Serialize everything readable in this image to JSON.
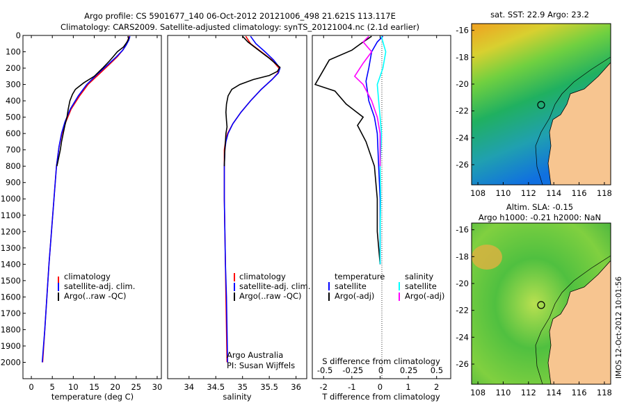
{
  "header": {
    "line1": "Argo profile: CS 5901677_140 06-Oct-2012 20121006_498 21.621S 113.117E",
    "line2": "Climatology: CARS2009. Satellite-adjusted climatology: synTS_20121004.nc (2.1d earlier)"
  },
  "colors": {
    "climatology": "#ff0000",
    "satellite": "#0000ff",
    "argo": "#000000",
    "sal_satellite": "#00ffff",
    "sal_argo": "#ff00ff",
    "land": "#f7c590"
  },
  "chart_data": [
    {
      "type": "line",
      "xlabel": "temperature (deg C)",
      "ylabel": "",
      "xlim": [
        -2,
        31
      ],
      "ylim": [
        2100,
        0
      ],
      "xticks": [
        0,
        5,
        10,
        15,
        20,
        25,
        30
      ],
      "yticks": [
        0,
        100,
        200,
        300,
        400,
        500,
        600,
        700,
        800,
        900,
        1000,
        1100,
        1200,
        1300,
        1400,
        1500,
        1600,
        1700,
        1800,
        1900,
        2000
      ],
      "legend": [
        "climatology",
        "satellite-adj. clim.",
        "Argo(..raw -QC)"
      ],
      "legend_position": "lower-center",
      "series": [
        {
          "name": "climatology",
          "color": "#ff0000",
          "points": [
            [
              23.3,
              5
            ],
            [
              23.0,
              30
            ],
            [
              22.5,
              60
            ],
            [
              21.8,
              90
            ],
            [
              20.5,
              130
            ],
            [
              18.5,
              180
            ],
            [
              16.0,
              240
            ],
            [
              13.5,
              300
            ],
            [
              11.5,
              370
            ],
            [
              9.5,
              450
            ],
            [
              8.2,
              530
            ],
            [
              7.3,
              600
            ],
            [
              6.6,
              680
            ],
            [
              6.0,
              800
            ],
            [
              5.4,
              1000
            ],
            [
              4.8,
              1200
            ],
            [
              4.2,
              1400
            ],
            [
              3.7,
              1600
            ],
            [
              3.2,
              1800
            ],
            [
              2.7,
              2000
            ]
          ]
        },
        {
          "name": "satellite-adj. clim.",
          "color": "#0000ff",
          "points": [
            [
              23.5,
              5
            ],
            [
              23.2,
              30
            ],
            [
              22.6,
              60
            ],
            [
              21.8,
              90
            ],
            [
              20.3,
              130
            ],
            [
              18.2,
              180
            ],
            [
              15.6,
              240
            ],
            [
              13.2,
              300
            ],
            [
              11.2,
              370
            ],
            [
              9.3,
              450
            ],
            [
              8.0,
              530
            ],
            [
              7.2,
              600
            ],
            [
              6.6,
              680
            ],
            [
              6.0,
              800
            ],
            [
              5.4,
              1000
            ],
            [
              4.8,
              1200
            ],
            [
              4.2,
              1400
            ],
            [
              3.7,
              1600
            ],
            [
              3.2,
              1800
            ],
            [
              2.6,
              2000
            ]
          ]
        },
        {
          "name": "Argo(..raw -QC)",
          "color": "#000000",
          "points": [
            [
              23.0,
              5
            ],
            [
              23.2,
              20
            ],
            [
              22.8,
              40
            ],
            [
              22.0,
              70
            ],
            [
              20.5,
              100
            ],
            [
              19.5,
              130
            ],
            [
              18.5,
              160
            ],
            [
              17.0,
              200
            ],
            [
              15.0,
              250
            ],
            [
              12.5,
              290
            ],
            [
              10.5,
              330
            ],
            [
              9.8,
              360
            ],
            [
              9.2,
              400
            ],
            [
              8.8,
              450
            ],
            [
              8.5,
              500
            ],
            [
              8.0,
              550
            ],
            [
              7.6,
              600
            ],
            [
              7.2,
              650
            ],
            [
              6.9,
              700
            ],
            [
              6.5,
              750
            ],
            [
              6.1,
              800
            ]
          ]
        }
      ]
    },
    {
      "type": "line",
      "xlabel": "salinity",
      "xlim": [
        33.6,
        36.2
      ],
      "ylim": [
        2100,
        0
      ],
      "xticks": [
        34,
        34.5,
        35,
        35.5,
        36
      ],
      "legend": [
        "climatology",
        "satellite-adj. clim.",
        "Argo(..raw -QC)"
      ],
      "legend_position": "lower-center",
      "annotations": [
        "Argo Australia",
        "PI: Susan Wijffels"
      ],
      "series": [
        {
          "name": "climatology",
          "color": "#ff0000",
          "points": [
            [
              35.06,
              5
            ],
            [
              35.15,
              50
            ],
            [
              35.35,
              100
            ],
            [
              35.55,
              150
            ],
            [
              35.68,
              200
            ],
            [
              35.66,
              230
            ],
            [
              35.55,
              270
            ],
            [
              35.35,
              330
            ],
            [
              35.15,
              400
            ],
            [
              34.97,
              470
            ],
            [
              34.82,
              540
            ],
            [
              34.72,
              600
            ],
            [
              34.68,
              650
            ],
            [
              34.66,
              700
            ],
            [
              34.66,
              800
            ],
            [
              34.66,
              1000
            ],
            [
              34.67,
              1200
            ],
            [
              34.68,
              1400
            ],
            [
              34.69,
              1600
            ],
            [
              34.7,
              1800
            ],
            [
              34.71,
              2000
            ]
          ]
        },
        {
          "name": "satellite-adj. clim.",
          "color": "#0000ff",
          "points": [
            [
              35.15,
              5
            ],
            [
              35.25,
              50
            ],
            [
              35.42,
              100
            ],
            [
              35.58,
              150
            ],
            [
              35.7,
              200
            ],
            [
              35.67,
              230
            ],
            [
              35.55,
              270
            ],
            [
              35.35,
              330
            ],
            [
              35.15,
              400
            ],
            [
              34.97,
              470
            ],
            [
              34.82,
              540
            ],
            [
              34.73,
              600
            ],
            [
              34.69,
              650
            ],
            [
              34.67,
              700
            ],
            [
              34.66,
              800
            ],
            [
              34.66,
              1000
            ],
            [
              34.67,
              1200
            ],
            [
              34.68,
              1400
            ],
            [
              34.7,
              1600
            ],
            [
              34.71,
              1800
            ],
            [
              34.72,
              2000
            ]
          ]
        },
        {
          "name": "Argo(..raw -QC)",
          "color": "#000000",
          "points": [
            [
              35.0,
              5
            ],
            [
              35.1,
              40
            ],
            [
              35.3,
              90
            ],
            [
              35.5,
              140
            ],
            [
              35.7,
              195
            ],
            [
              35.65,
              220
            ],
            [
              35.5,
              245
            ],
            [
              35.2,
              270
            ],
            [
              34.95,
              300
            ],
            [
              34.8,
              330
            ],
            [
              34.73,
              370
            ],
            [
              34.7,
              420
            ],
            [
              34.69,
              470
            ],
            [
              34.7,
              520
            ],
            [
              34.71,
              560
            ],
            [
              34.69,
              600
            ],
            [
              34.68,
              650
            ],
            [
              34.67,
              700
            ],
            [
              34.66,
              800
            ]
          ]
        }
      ]
    },
    {
      "type": "line",
      "xlabel": "T difference from climatology",
      "xlabel_top": "S difference from climatology",
      "xlim": [
        -2.4,
        2.5
      ],
      "ylim": [
        2100,
        0
      ],
      "xticks_bottom": [
        -2,
        -1,
        0,
        1,
        2
      ],
      "xticks_top": [
        -0.5,
        -0.25,
        0,
        0.25,
        0.5
      ],
      "legend_left_title": "temperature",
      "legend_left": [
        "satellite",
        "Argo(-adj)"
      ],
      "legend_right_title": "salinity",
      "legend_right": [
        "satellite",
        "Argo(-adj)"
      ],
      "legend_position": "lower-center",
      "series": [
        {
          "name": "satellite",
          "group": "temperature",
          "color": "#0000ff",
          "points": [
            [
              0.1,
              5
            ],
            [
              -0.1,
              40
            ],
            [
              -0.3,
              100
            ],
            [
              -0.4,
              200
            ],
            [
              -0.5,
              280
            ],
            [
              -0.4,
              400
            ],
            [
              -0.2,
              500
            ],
            [
              -0.1,
              600
            ],
            [
              -0.05,
              800
            ],
            [
              0,
              1000
            ],
            [
              0,
              1400
            ]
          ]
        },
        {
          "name": "Argo(-adj)",
          "group": "temperature",
          "color": "#000000",
          "points": [
            [
              -0.3,
              5
            ],
            [
              -0.6,
              40
            ],
            [
              -1.0,
              90
            ],
            [
              -1.8,
              150
            ],
            [
              -2.3,
              300
            ],
            [
              -1.6,
              340
            ],
            [
              -1.2,
              420
            ],
            [
              -0.6,
              500
            ],
            [
              -0.8,
              550
            ],
            [
              -0.5,
              650
            ],
            [
              -0.2,
              800
            ],
            [
              -0.1,
              1000
            ],
            [
              -0.1,
              1200
            ],
            [
              0,
              1400
            ]
          ]
        },
        {
          "name": "satellite",
          "group": "salinity",
          "color": "#00ffff",
          "points": [
            [
              0.05,
              5
            ],
            [
              0.1,
              40
            ],
            [
              0.2,
              100
            ],
            [
              0.1,
              200
            ],
            [
              -0.1,
              300
            ],
            [
              -0.05,
              400
            ],
            [
              0,
              500
            ],
            [
              0.05,
              600
            ],
            [
              0,
              800
            ],
            [
              0.02,
              1000
            ],
            [
              0,
              1200
            ],
            [
              0,
              1400
            ]
          ]
        },
        {
          "name": "Argo(-adj)",
          "group": "salinity",
          "color": "#ff00ff",
          "points": [
            [
              -0.4,
              5
            ],
            [
              -0.6,
              40
            ],
            [
              -0.3,
              100
            ],
            [
              -0.6,
              170
            ],
            [
              -0.9,
              250
            ],
            [
              -0.6,
              300
            ],
            [
              -0.3,
              400
            ],
            [
              -0.1,
              500
            ],
            [
              0,
              600
            ],
            [
              0,
              800
            ]
          ]
        }
      ]
    },
    {
      "type": "heatmap",
      "title": "sat. SST: 22.9 Argo: 23.2",
      "xlim": [
        107.5,
        118.5
      ],
      "ylim": [
        -27.5,
        -15.5
      ],
      "xticks": [
        108,
        110,
        112,
        114,
        116,
        118
      ],
      "yticks": [
        -16,
        -18,
        -20,
        -22,
        -24,
        -26
      ],
      "marker": {
        "lon": 113.117,
        "lat": -21.621
      }
    },
    {
      "type": "heatmap",
      "title_line1": "Altim. SLA: -0.15",
      "title_line2": "Argo h1000: -0.21 h2000: NaN",
      "xlim": [
        107.5,
        118.5
      ],
      "ylim": [
        -27.5,
        -15.5
      ],
      "xticks": [
        108,
        110,
        112,
        114,
        116,
        118
      ],
      "yticks": [
        -16,
        -18,
        -20,
        -22,
        -24,
        -26
      ],
      "marker": {
        "lon": 113.117,
        "lat": -21.621
      }
    }
  ],
  "footer": {
    "side_label": "IMOS 12-Oct-2012 10:01:56"
  }
}
